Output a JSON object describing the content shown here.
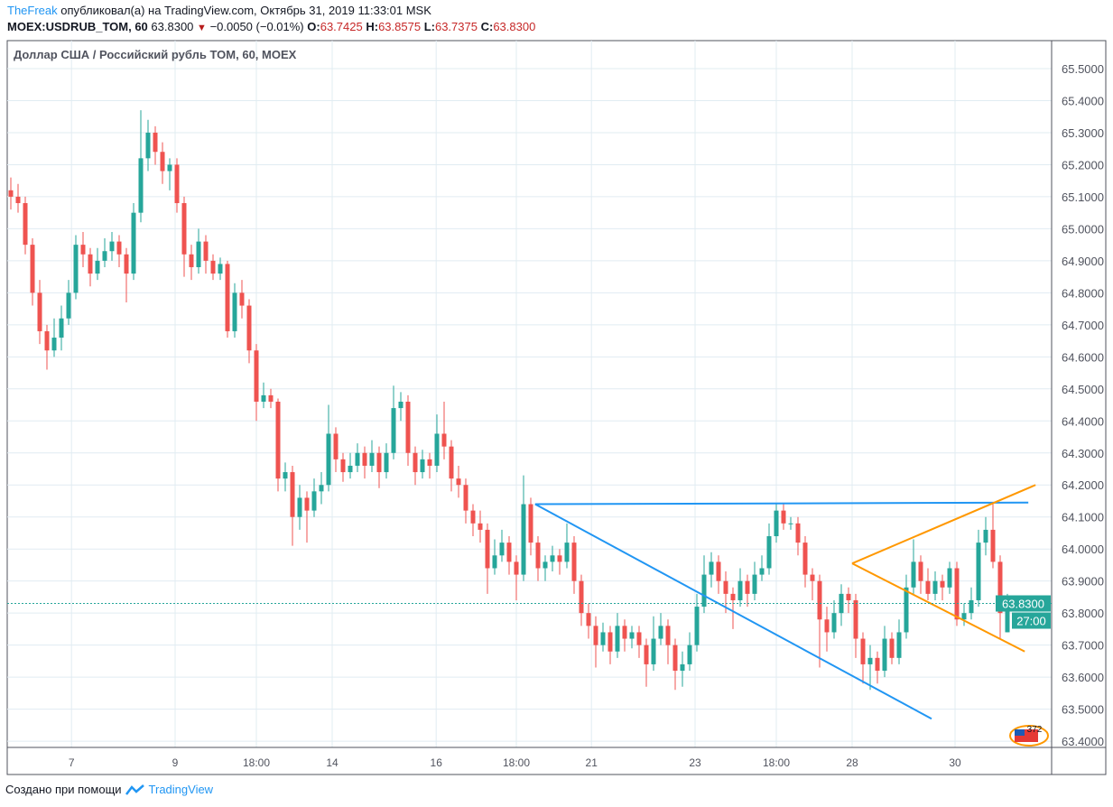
{
  "header": {
    "user": "TheFreak",
    "published_text": "опубликовал(а) на TradingView.com, Октябрь 31, 2019 11:33:01 MSK",
    "symbol": "MOEX:USDRUB_TOM, 60",
    "last": "63.8300",
    "change": "−0.0050 (−0.01%)",
    "o_label": "O:",
    "o": "63.7425",
    "h_label": "H:",
    "h": "63.8575",
    "l_label": "L:",
    "l": "63.7375",
    "c_label": "C:",
    "c": "63.8300"
  },
  "legend_title": "Доллар США / Российский рубль TOM, 60, MOEX",
  "footer": {
    "text": "Создано при помощи",
    "brand": "TradingView"
  },
  "colors": {
    "up": "#26a69a",
    "down": "#ef5350",
    "grid": "#e1ecf2",
    "trend_blue": "#2196f3",
    "trend_orange": "#ff9800",
    "price_line": "#26a69a"
  },
  "chart_data": {
    "type": "candlestick",
    "interval": "60",
    "ylim": [
      63.4,
      65.5
    ],
    "y_ticks": [
      "65.5000",
      "65.4000",
      "65.3000",
      "65.2000",
      "65.1000",
      "65.0000",
      "64.9000",
      "64.8000",
      "64.7000",
      "64.6000",
      "64.5000",
      "64.4000",
      "64.3000",
      "64.2000",
      "64.1000",
      "64.0000",
      "63.9000",
      "63.8000",
      "63.7000",
      "63.6000",
      "63.5000",
      "63.4000"
    ],
    "x_ticks": [
      {
        "label": "7",
        "bar": 8.4
      },
      {
        "label": "9",
        "bar": 22.75
      },
      {
        "label": "18:00",
        "bar": 34
      },
      {
        "label": "14",
        "bar": 44.5
      },
      {
        "label": "16",
        "bar": 58.9
      },
      {
        "label": "18:00",
        "bar": 70
      },
      {
        "label": "21",
        "bar": 80.4
      },
      {
        "label": "23",
        "bar": 94.75
      },
      {
        "label": "18:00",
        "bar": 106
      },
      {
        "label": "28",
        "bar": 116.5
      },
      {
        "label": "30",
        "bar": 130.75
      }
    ],
    "last_price": {
      "value": 63.83,
      "label": "63.8300",
      "countdown": "27:00"
    },
    "candles_ohlc": [
      [
        65.12,
        65.16,
        65.06,
        65.1
      ],
      [
        65.1,
        65.14,
        65.05,
        65.08
      ],
      [
        65.08,
        65.1,
        64.92,
        64.95
      ],
      [
        64.95,
        64.97,
        64.76,
        64.8
      ],
      [
        64.8,
        64.84,
        64.64,
        64.68
      ],
      [
        64.68,
        64.7,
        64.56,
        64.62
      ],
      [
        64.62,
        64.72,
        64.6,
        64.66
      ],
      [
        64.66,
        64.76,
        64.62,
        64.72
      ],
      [
        64.72,
        64.84,
        64.7,
        64.8
      ],
      [
        64.8,
        64.98,
        64.78,
        64.95
      ],
      [
        64.95,
        64.99,
        64.88,
        64.92
      ],
      [
        64.92,
        64.94,
        64.82,
        64.86
      ],
      [
        64.86,
        64.94,
        64.84,
        64.9
      ],
      [
        64.9,
        64.97,
        64.88,
        64.93
      ],
      [
        64.93,
        64.99,
        64.9,
        64.96
      ],
      [
        64.96,
        64.98,
        64.88,
        64.92
      ],
      [
        64.92,
        64.94,
        64.77,
        64.86
      ],
      [
        64.86,
        65.08,
        64.84,
        65.05
      ],
      [
        65.05,
        65.37,
        65.02,
        65.22
      ],
      [
        65.22,
        65.34,
        65.18,
        65.3
      ],
      [
        65.3,
        65.32,
        65.2,
        65.24
      ],
      [
        65.24,
        65.27,
        65.14,
        65.18
      ],
      [
        65.18,
        65.22,
        65.12,
        65.2
      ],
      [
        65.2,
        65.22,
        65.05,
        65.08
      ],
      [
        65.08,
        65.1,
        64.85,
        64.92
      ],
      [
        64.92,
        64.95,
        64.84,
        64.88
      ],
      [
        64.88,
        65.0,
        64.86,
        64.96
      ],
      [
        64.96,
        64.98,
        64.86,
        64.9
      ],
      [
        64.9,
        64.92,
        64.84,
        64.86
      ],
      [
        64.86,
        64.91,
        64.84,
        64.89
      ],
      [
        64.89,
        64.9,
        64.66,
        64.68
      ],
      [
        64.68,
        64.83,
        64.66,
        64.8
      ],
      [
        64.8,
        64.84,
        64.72,
        64.76
      ],
      [
        64.76,
        64.78,
        64.58,
        64.62
      ],
      [
        64.62,
        64.64,
        64.4,
        64.46
      ],
      [
        64.46,
        64.52,
        64.44,
        64.48
      ],
      [
        64.48,
        64.5,
        64.44,
        64.46
      ],
      [
        64.46,
        64.47,
        64.18,
        64.22
      ],
      [
        64.22,
        64.27,
        64.18,
        64.24
      ],
      [
        64.24,
        64.26,
        64.01,
        64.1
      ],
      [
        64.1,
        64.2,
        64.06,
        64.16
      ],
      [
        64.16,
        64.18,
        64.02,
        64.12
      ],
      [
        64.12,
        64.22,
        64.1,
        64.18
      ],
      [
        64.18,
        64.24,
        64.14,
        64.2
      ],
      [
        64.2,
        64.45,
        64.18,
        64.36
      ],
      [
        64.36,
        64.38,
        64.24,
        64.28
      ],
      [
        64.28,
        64.3,
        64.21,
        64.24
      ],
      [
        64.24,
        64.3,
        64.22,
        64.26
      ],
      [
        64.26,
        64.33,
        64.24,
        64.3
      ],
      [
        64.3,
        64.32,
        64.22,
        64.26
      ],
      [
        64.26,
        64.34,
        64.24,
        64.3
      ],
      [
        64.3,
        64.32,
        64.19,
        64.24
      ],
      [
        64.24,
        64.33,
        64.22,
        64.3
      ],
      [
        64.3,
        64.51,
        64.28,
        64.44
      ],
      [
        64.44,
        64.49,
        64.4,
        64.46
      ],
      [
        64.46,
        64.48,
        64.26,
        64.3
      ],
      [
        64.3,
        64.32,
        64.2,
        64.24
      ],
      [
        64.24,
        64.31,
        64.22,
        64.28
      ],
      [
        64.28,
        64.3,
        64.22,
        64.26
      ],
      [
        64.26,
        64.42,
        64.24,
        64.36
      ],
      [
        64.36,
        64.46,
        64.28,
        64.32
      ],
      [
        64.32,
        64.34,
        64.18,
        64.22
      ],
      [
        64.22,
        64.26,
        64.16,
        64.2
      ],
      [
        64.2,
        64.22,
        64.08,
        64.12
      ],
      [
        64.12,
        64.14,
        64.04,
        64.08
      ],
      [
        64.08,
        64.12,
        64.02,
        64.06
      ],
      [
        64.06,
        64.08,
        63.86,
        63.94
      ],
      [
        63.94,
        64.03,
        63.92,
        63.98
      ],
      [
        63.98,
        64.06,
        63.96,
        64.02
      ],
      [
        64.02,
        64.04,
        63.92,
        63.96
      ],
      [
        63.96,
        63.98,
        63.84,
        63.92
      ],
      [
        63.92,
        64.23,
        63.9,
        64.14
      ],
      [
        64.14,
        64.16,
        63.98,
        64.02
      ],
      [
        64.02,
        64.04,
        63.9,
        63.94
      ],
      [
        63.94,
        63.98,
        63.9,
        63.96
      ],
      [
        63.96,
        64.01,
        63.93,
        63.98
      ],
      [
        63.98,
        64.0,
        63.92,
        63.96
      ],
      [
        63.96,
        64.08,
        63.94,
        64.02
      ],
      [
        64.02,
        64.04,
        63.86,
        63.9
      ],
      [
        63.9,
        63.92,
        63.76,
        63.8
      ],
      [
        63.8,
        63.83,
        63.72,
        63.76
      ],
      [
        63.76,
        63.79,
        63.63,
        63.7
      ],
      [
        63.7,
        63.77,
        63.68,
        63.74
      ],
      [
        63.74,
        63.76,
        63.64,
        63.68
      ],
      [
        63.68,
        63.8,
        63.66,
        63.76
      ],
      [
        63.76,
        63.78,
        63.68,
        63.72
      ],
      [
        63.72,
        63.76,
        63.69,
        63.74
      ],
      [
        63.74,
        63.76,
        63.66,
        63.7
      ],
      [
        63.7,
        63.72,
        63.57,
        63.64
      ],
      [
        63.64,
        63.79,
        63.62,
        63.72
      ],
      [
        63.72,
        63.8,
        63.7,
        63.76
      ],
      [
        63.76,
        63.78,
        63.64,
        63.7
      ],
      [
        63.7,
        63.72,
        63.56,
        63.62
      ],
      [
        63.62,
        63.68,
        63.57,
        63.64
      ],
      [
        63.64,
        63.74,
        63.62,
        63.7
      ],
      [
        63.7,
        63.86,
        63.68,
        63.82
      ],
      [
        63.82,
        63.98,
        63.8,
        63.92
      ],
      [
        63.92,
        63.99,
        63.88,
        63.96
      ],
      [
        63.96,
        63.98,
        63.86,
        63.9
      ],
      [
        63.9,
        63.93,
        63.8,
        63.86
      ],
      [
        63.86,
        63.88,
        63.75,
        63.84
      ],
      [
        63.84,
        63.94,
        63.82,
        63.9
      ],
      [
        63.9,
        63.92,
        63.82,
        63.86
      ],
      [
        63.86,
        63.96,
        63.84,
        63.92
      ],
      [
        63.92,
        63.98,
        63.9,
        63.94
      ],
      [
        63.94,
        64.08,
        63.92,
        64.04
      ],
      [
        64.04,
        64.14,
        64.02,
        64.12
      ],
      [
        64.12,
        64.14,
        64.06,
        64.08
      ],
      [
        64.08,
        64.1,
        64.06,
        64.08
      ],
      [
        64.08,
        64.1,
        63.98,
        64.02
      ],
      [
        64.02,
        64.04,
        63.88,
        63.92
      ],
      [
        63.92,
        63.94,
        63.84,
        63.9
      ],
      [
        63.9,
        63.92,
        63.63,
        63.78
      ],
      [
        63.78,
        63.82,
        63.68,
        63.74
      ],
      [
        63.74,
        63.84,
        63.72,
        63.8
      ],
      [
        63.8,
        63.89,
        63.76,
        63.86
      ],
      [
        63.86,
        63.88,
        63.8,
        63.84
      ],
      [
        63.84,
        63.86,
        63.66,
        63.72
      ],
      [
        63.72,
        63.74,
        63.58,
        63.64
      ],
      [
        63.64,
        63.7,
        63.56,
        63.66
      ],
      [
        63.66,
        63.68,
        63.58,
        63.62
      ],
      [
        63.62,
        63.76,
        63.6,
        63.72
      ],
      [
        63.72,
        63.74,
        63.64,
        63.66
      ],
      [
        63.66,
        63.78,
        63.64,
        63.74
      ],
      [
        63.74,
        63.92,
        63.72,
        63.88
      ],
      [
        63.88,
        64.03,
        63.86,
        63.96
      ],
      [
        63.96,
        63.98,
        63.86,
        63.9
      ],
      [
        63.9,
        63.94,
        63.84,
        63.86
      ],
      [
        63.86,
        63.93,
        63.84,
        63.9
      ],
      [
        63.9,
        63.92,
        63.84,
        63.88
      ],
      [
        63.88,
        63.96,
        63.86,
        63.94
      ],
      [
        63.94,
        63.96,
        63.76,
        63.78
      ],
      [
        63.78,
        63.83,
        63.76,
        63.8
      ],
      [
        63.8,
        63.88,
        63.78,
        63.84
      ],
      [
        63.84,
        64.06,
        63.82,
        64.02
      ],
      [
        64.02,
        64.1,
        63.98,
        64.06
      ],
      [
        64.06,
        64.14,
        63.94,
        63.96
      ],
      [
        63.96,
        63.98,
        63.72,
        63.8
      ],
      [
        63.74,
        63.86,
        63.74,
        63.83
      ]
    ],
    "drawings": [
      {
        "name": "horizontal-resistance",
        "color": "#2196f3",
        "from": [
          72.6,
          64.14
        ],
        "to": [
          140.9,
          64.145
        ]
      },
      {
        "name": "descending-trendline",
        "color": "#2196f3",
        "from": [
          72.6,
          64.14
        ],
        "to": [
          127.5,
          63.47
        ]
      },
      {
        "name": "wedge-upper",
        "color": "#ff9800",
        "from": [
          116.5,
          63.955
        ],
        "to": [
          141.9,
          64.2
        ]
      },
      {
        "name": "wedge-lower",
        "color": "#ff9800",
        "from": [
          116.5,
          63.955
        ],
        "to": [
          140.4,
          63.68
        ]
      }
    ],
    "flag_badge": "372"
  }
}
